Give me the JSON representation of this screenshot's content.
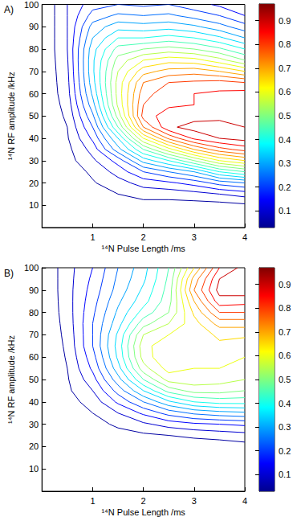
{
  "chart_data": [
    {
      "type": "contour",
      "title": "A)",
      "x_label": "¹⁴N Pulse Length /ms",
      "y_label": "¹⁴N RF amplitude /kHz",
      "x": [
        0,
        0.5,
        1,
        1.5,
        2,
        2.5,
        3,
        3.5,
        4
      ],
      "y": [
        0,
        5,
        10,
        15,
        20,
        25,
        30,
        35,
        40,
        45,
        50,
        55,
        60,
        65,
        70,
        75,
        80,
        85,
        90,
        95,
        100
      ],
      "z": [
        [
          0,
          0,
          0,
          0,
          0,
          0,
          0,
          0,
          0
        ],
        [
          0,
          0,
          0.005,
          0.01,
          0.01,
          0.01,
          0.01,
          0.01,
          0.01
        ],
        [
          0,
          0.005,
          0.015,
          0.025,
          0.03,
          0.03,
          0.03,
          0.03,
          0.04
        ],
        [
          0,
          0.01,
          0.03,
          0.05,
          0.07,
          0.07,
          0.08,
          0.1,
          0.12
        ],
        [
          0,
          0.015,
          0.045,
          0.08,
          0.12,
          0.14,
          0.17,
          0.22,
          0.25
        ],
        [
          0,
          0.02,
          0.06,
          0.12,
          0.2,
          0.25,
          0.3,
          0.4,
          0.45
        ],
        [
          0,
          0.03,
          0.09,
          0.17,
          0.32,
          0.4,
          0.5,
          0.6,
          0.65
        ],
        [
          0,
          0.035,
          0.12,
          0.28,
          0.45,
          0.58,
          0.7,
          0.78,
          0.82
        ],
        [
          0,
          0.045,
          0.16,
          0.35,
          0.6,
          0.76,
          0.86,
          0.9,
          0.92
        ],
        [
          0,
          0.05,
          0.2,
          0.45,
          0.75,
          0.89,
          0.92,
          0.93,
          0.9
        ],
        [
          0,
          0.06,
          0.24,
          0.52,
          0.82,
          0.88,
          0.88,
          0.88,
          0.87
        ],
        [
          0,
          0.07,
          0.28,
          0.56,
          0.8,
          0.84,
          0.85,
          0.86,
          0.88
        ],
        [
          0,
          0.08,
          0.31,
          0.57,
          0.78,
          0.83,
          0.85,
          0.86,
          0.87
        ],
        [
          0,
          0.085,
          0.33,
          0.57,
          0.75,
          0.8,
          0.81,
          0.82,
          0.8
        ],
        [
          0,
          0.09,
          0.34,
          0.55,
          0.68,
          0.72,
          0.73,
          0.7,
          0.65
        ],
        [
          0,
          0.095,
          0.34,
          0.52,
          0.6,
          0.63,
          0.62,
          0.57,
          0.5
        ],
        [
          0,
          0.1,
          0.33,
          0.47,
          0.5,
          0.52,
          0.5,
          0.46,
          0.4
        ],
        [
          0,
          0.1,
          0.3,
          0.4,
          0.4,
          0.42,
          0.4,
          0.36,
          0.3
        ],
        [
          0,
          0.1,
          0.27,
          0.33,
          0.32,
          0.33,
          0.31,
          0.27,
          0.22
        ],
        [
          0,
          0.1,
          0.22,
          0.26,
          0.25,
          0.26,
          0.23,
          0.2,
          0.15
        ],
        [
          0,
          0.1,
          0.18,
          0.2,
          0.19,
          0.2,
          0.17,
          0.14,
          0.1
        ]
      ],
      "levels": [
        0.05,
        0.1,
        0.15,
        0.2,
        0.25,
        0.3,
        0.35,
        0.4,
        0.45,
        0.5,
        0.55,
        0.6,
        0.65,
        0.7,
        0.75,
        0.8,
        0.85,
        0.9
      ],
      "xlim": [
        0,
        4
      ],
      "xticks": [
        1,
        2,
        3,
        4
      ],
      "ylim": [
        0,
        100
      ],
      "yticks": [
        10,
        20,
        30,
        40,
        50,
        60,
        70,
        80,
        90,
        100
      ],
      "colorbar_range": [
        0.03,
        0.97
      ],
      "colorbar_ticks": [
        0.1,
        0.2,
        0.3,
        0.4,
        0.5,
        0.6,
        0.7,
        0.8,
        0.9
      ]
    },
    {
      "type": "contour",
      "title": "B)",
      "x_label": "¹⁴N Pulse Length /ms",
      "y_label": "¹⁴N RF amplitude /kHz",
      "x": [
        0,
        0.5,
        1,
        1.5,
        2,
        2.5,
        3,
        3.5,
        4
      ],
      "y": [
        0,
        5,
        10,
        15,
        20,
        25,
        30,
        35,
        40,
        45,
        50,
        55,
        60,
        65,
        70,
        75,
        80,
        85,
        90,
        95,
        100
      ],
      "z": [
        [
          0,
          0,
          0,
          0,
          0,
          0,
          0,
          0,
          0
        ],
        [
          0,
          0,
          0,
          0,
          0,
          0,
          0,
          0,
          0
        ],
        [
          0,
          0,
          0,
          0,
          0,
          0,
          0,
          0,
          0
        ],
        [
          0,
          0,
          0,
          0,
          0,
          0,
          0,
          0,
          0
        ],
        [
          0,
          0,
          0.005,
          0.01,
          0.015,
          0.015,
          0.02,
          0.02,
          0.03
        ],
        [
          0,
          0.005,
          0.015,
          0.03,
          0.04,
          0.05,
          0.06,
          0.07,
          0.08
        ],
        [
          0,
          0.01,
          0.03,
          0.06,
          0.09,
          0.12,
          0.14,
          0.15,
          0.16
        ],
        [
          0,
          0.02,
          0.05,
          0.1,
          0.16,
          0.22,
          0.26,
          0.28,
          0.29
        ],
        [
          0,
          0.03,
          0.07,
          0.16,
          0.25,
          0.34,
          0.4,
          0.42,
          0.42
        ],
        [
          0,
          0.04,
          0.1,
          0.22,
          0.35,
          0.47,
          0.52,
          0.52,
          0.5
        ],
        [
          0,
          0.045,
          0.13,
          0.28,
          0.45,
          0.57,
          0.58,
          0.57,
          0.55
        ],
        [
          0,
          0.05,
          0.16,
          0.33,
          0.53,
          0.62,
          0.6,
          0.6,
          0.58
        ],
        [
          0,
          0.055,
          0.18,
          0.36,
          0.57,
          0.65,
          0.62,
          0.62,
          0.6
        ],
        [
          0,
          0.06,
          0.2,
          0.37,
          0.58,
          0.64,
          0.62,
          0.64,
          0.62
        ],
        [
          0,
          0.065,
          0.2,
          0.36,
          0.55,
          0.6,
          0.62,
          0.66,
          0.66
        ],
        [
          0,
          0.07,
          0.2,
          0.33,
          0.48,
          0.55,
          0.63,
          0.72,
          0.72
        ],
        [
          0,
          0.075,
          0.19,
          0.31,
          0.42,
          0.5,
          0.66,
          0.8,
          0.8
        ],
        [
          0,
          0.078,
          0.18,
          0.29,
          0.38,
          0.48,
          0.7,
          0.88,
          0.87
        ],
        [
          0,
          0.08,
          0.17,
          0.27,
          0.36,
          0.47,
          0.75,
          0.92,
          0.93
        ],
        [
          0,
          0.08,
          0.16,
          0.26,
          0.34,
          0.46,
          0.72,
          0.9,
          0.95
        ],
        [
          0,
          0.08,
          0.15,
          0.25,
          0.33,
          0.45,
          0.65,
          0.85,
          0.92
        ]
      ],
      "levels": [
        0.05,
        0.1,
        0.15,
        0.2,
        0.25,
        0.3,
        0.35,
        0.4,
        0.45,
        0.5,
        0.55,
        0.6,
        0.65,
        0.7,
        0.75,
        0.8,
        0.85,
        0.9
      ],
      "xlim": [
        0,
        4
      ],
      "xticks": [
        1,
        2,
        3,
        4
      ],
      "ylim": [
        0,
        100
      ],
      "yticks": [
        10,
        20,
        30,
        40,
        50,
        60,
        70,
        80,
        90,
        100
      ],
      "colorbar_range": [
        0.03,
        0.97
      ],
      "colorbar_ticks": [
        0.1,
        0.2,
        0.3,
        0.4,
        0.5,
        0.6,
        0.7,
        0.8,
        0.9
      ]
    }
  ]
}
